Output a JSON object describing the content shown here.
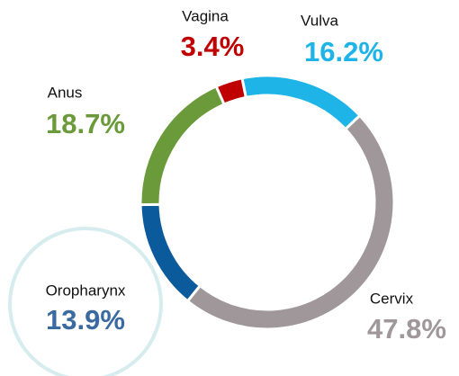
{
  "chart_data": {
    "type": "donut",
    "categories": [
      "Vulva",
      "Cervix",
      "Oropharynx",
      "Anus",
      "Vagina"
    ],
    "values": [
      16.2,
      47.8,
      13.9,
      18.7,
      3.4
    ],
    "value_labels": [
      "16.2%",
      "47.8%",
      "13.9%",
      "18.7%",
      "3.4%"
    ],
    "colors": [
      "#1fb4e8",
      "#a0979a",
      "#0b5a9c",
      "#6a9a3a",
      "#c00000"
    ],
    "label_colors": [
      "#1fb4e8",
      "#a0979a",
      "#3a6aa0",
      "#6a9a3a",
      "#c00000"
    ]
  }
}
